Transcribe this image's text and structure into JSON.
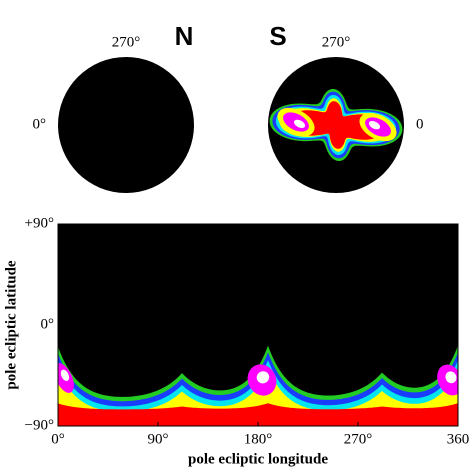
{
  "chart_data": [
    {
      "type": "polar",
      "label": "N",
      "zero_side": "left",
      "angle_ticks": [
        {
          "value": 270,
          "label": "270°"
        },
        {
          "value": 0,
          "label": "0°"
        }
      ]
    },
    {
      "type": "polar",
      "label": "S",
      "zero_side": "right",
      "angle_ticks": [
        {
          "value": 270,
          "label": "270°"
        },
        {
          "value": 0,
          "label": "0"
        }
      ]
    },
    {
      "type": "map",
      "xlabel": "pole ecliptic longitude",
      "ylabel": "pole ecliptic latitude",
      "xlim": [
        0,
        360
      ],
      "ylim": [
        -90,
        90
      ],
      "xticks": [
        {
          "value": 0,
          "label": "0°"
        },
        {
          "value": 90,
          "label": "90°"
        },
        {
          "value": 180,
          "label": "180°"
        },
        {
          "value": 270,
          "label": "270°"
        },
        {
          "value": 360,
          "label": "360"
        }
      ],
      "yticks": [
        {
          "value": -90,
          "label": "−90°"
        },
        {
          "value": 0,
          "label": "0°"
        },
        {
          "value": 90,
          "label": "+90°"
        }
      ]
    }
  ]
}
